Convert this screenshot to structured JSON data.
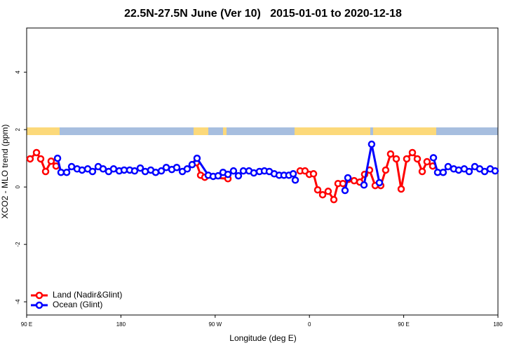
{
  "chart_data": {
    "type": "line",
    "title": "22.5N-27.5N June (Ver 10)   2015-01-01 to 2020-12-18",
    "xlabel": "Longitude (deg E)",
    "ylabel": "XCO2 - MLO trend (ppm)",
    "xlim": [
      90,
      540
    ],
    "xticks": [
      {
        "value": 90,
        "label": "90 E"
      },
      {
        "value": 180,
        "label": "180"
      },
      {
        "value": 270,
        "label": "90 W"
      },
      {
        "value": 360,
        "label": "0"
      },
      {
        "value": 450,
        "label": "90 E"
      },
      {
        "value": 540,
        "label": "180"
      }
    ],
    "ylim": [
      -4.46,
      5.54
    ],
    "yticks": [
      -4,
      -2,
      0,
      2,
      4
    ],
    "legend": "bottom-left",
    "series": [
      {
        "name": "Land (Nadir&Glint)",
        "color": "#ff0000",
        "x": [
          93.3,
          99.4,
          103.4,
          108.1,
          113.4,
          118.1,
          200,
          252.0,
          256.1,
          260.1,
          282.2,
          320,
          351.1,
          355.8,
          359.9,
          363.9,
          367.9,
          372.6,
          377.9,
          383.3,
          387.3,
          392.0,
          397.3,
          402.7,
          408.1,
          412.7,
          417.4,
          422.8,
          428.1,
          432.8,
          437.5,
          442.9,
          447.6,
          452.9,
          458.3,
          463.0,
          467.7,
          472.3,
          477.7
        ],
        "values": [
          0.98,
          1.2,
          0.98,
          0.54,
          0.9,
          0.73,
          null,
          0.85,
          0.41,
          0.34,
          0.29,
          null,
          0.56,
          0.56,
          0.44,
          0.46,
          -0.1,
          -0.27,
          -0.15,
          -0.44,
          0.12,
          0.12,
          0.27,
          0.22,
          0.17,
          0.44,
          0.59,
          0.05,
          0.05,
          0.59,
          1.15,
          0.98,
          -0.07,
          0.98,
          1.2,
          0.98,
          0.54,
          0.88,
          0.73
        ]
      },
      {
        "name": "Ocean (Glint)",
        "color": "#0000ff",
        "x": [
          119.5,
          122.8,
          128.2,
          132.9,
          138.2,
          142.9,
          148.3,
          152.9,
          158.3,
          163.0,
          168.3,
          173.0,
          178.4,
          183.1,
          188.4,
          193.1,
          198.5,
          203.2,
          208.5,
          213.2,
          218.6,
          223.3,
          228.6,
          233.3,
          238.7,
          243.3,
          248.0,
          252.7,
          263.4,
          268.1,
          272.8,
          277.5,
          282.2,
          287.5,
          292.2,
          296.9,
          302.3,
          306.9,
          312.3,
          317.0,
          321.7,
          326.4,
          331.1,
          335.7,
          340.4,
          344.5,
          346.5,
          370,
          394.0,
          396.7,
          405,
          412.1,
          419.4,
          426.8,
          440,
          478.4,
          482.4,
          487.7,
          492.4,
          497.8,
          502.5,
          507.8,
          512.5,
          517.9,
          522.6,
          527.3,
          532.6,
          537.3
        ],
        "values": [
          1.0,
          0.51,
          0.51,
          0.71,
          0.63,
          0.59,
          0.63,
          0.54,
          0.71,
          0.63,
          0.54,
          0.63,
          0.56,
          0.59,
          0.59,
          0.56,
          0.66,
          0.54,
          0.59,
          0.51,
          0.56,
          0.68,
          0.61,
          0.68,
          0.54,
          0.63,
          0.78,
          1.0,
          0.41,
          0.37,
          0.39,
          0.51,
          0.44,
          0.56,
          0.39,
          0.56,
          0.56,
          0.49,
          0.54,
          0.56,
          0.54,
          0.46,
          0.41,
          0.41,
          0.41,
          0.46,
          0.24,
          null,
          -0.12,
          0.32,
          null,
          0.07,
          1.49,
          0.15,
          null,
          1.02,
          0.51,
          0.51,
          0.71,
          0.63,
          0.59,
          0.63,
          0.54,
          0.71,
          0.63,
          0.54,
          0.63,
          0.56
        ]
      }
    ]
  }
}
